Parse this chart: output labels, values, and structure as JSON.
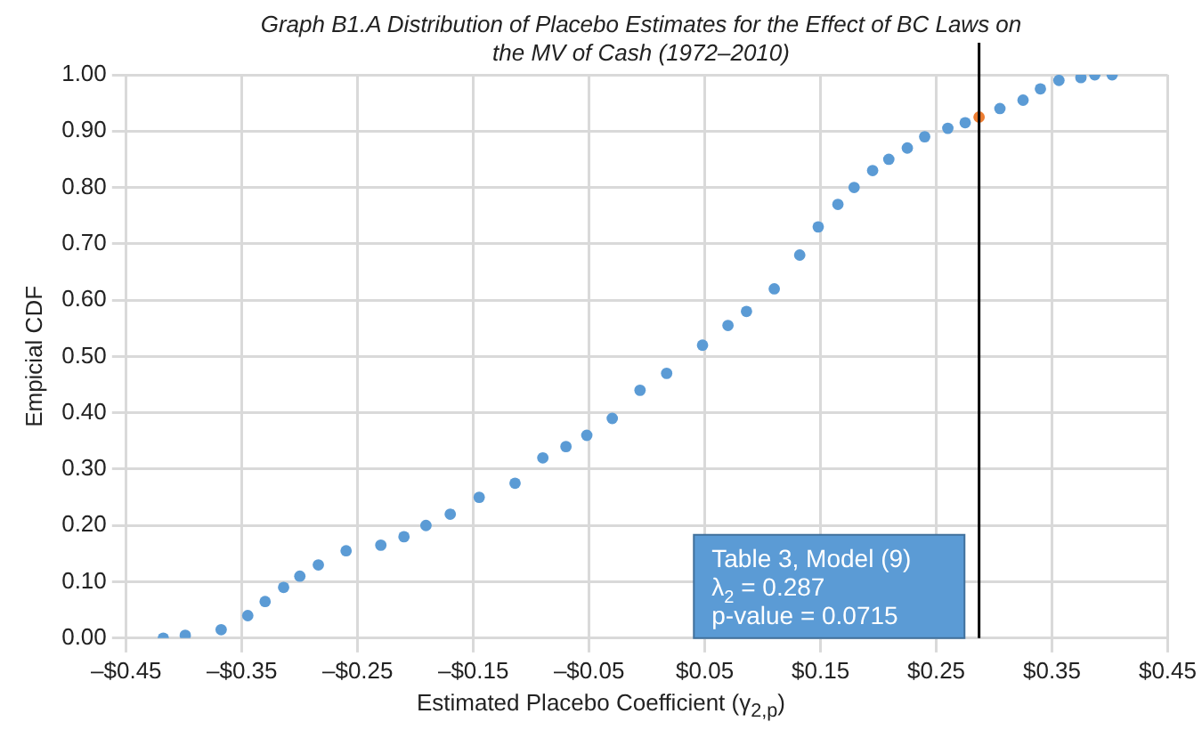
{
  "chart_data": {
    "type": "scatter",
    "title": "Graph B1.A Distribution of Placebo Estimates for the Effect of BC Laws on the MV of Cash (1972–2010)",
    "xlabel": "Estimated Placebo Coefficient (γ$_{2,p}$)",
    "ylabel": "Empicial CDF",
    "series": [
      {
        "color": "#5b9bd5",
        "x": [
          -0.418,
          -0.399,
          -0.368,
          -0.345,
          -0.33,
          -0.314,
          -0.3,
          -0.284,
          -0.26,
          -0.23,
          -0.21,
          -0.191,
          -0.17,
          -0.145,
          -0.114,
          -0.09,
          -0.07,
          -0.052,
          -0.03,
          -0.006,
          0.017,
          0.048,
          0.07,
          0.086,
          0.11,
          0.132,
          0.148,
          0.165,
          0.179,
          0.195,
          0.209,
          0.225,
          0.24,
          0.26,
          0.275,
          0.305,
          0.325,
          0.34,
          0.356,
          0.375,
          0.387,
          0.402
        ],
        "values": [
          0,
          0.005,
          0.015,
          0.04,
          0.065,
          0.09,
          0.11,
          0.13,
          0.155,
          0.165,
          0.18,
          0.2,
          0.22,
          0.25,
          0.275,
          0.32,
          0.34,
          0.36,
          0.39,
          0.44,
          0.47,
          0.52,
          0.555,
          0.58,
          0.62,
          0.68,
          0.73,
          0.77,
          0.8,
          0.83,
          0.85,
          0.87,
          0.89,
          0.905,
          0.915,
          0.94,
          0.955,
          0.975,
          0.99,
          0.995,
          1,
          1
        ]
      },
      {
        "color": "#ed7d31",
        "x": [
          0.287
        ],
        "values": [
          0.925
        ]
      }
    ],
    "xlim": [
      -0.45,
      0.45
    ],
    "xticks": [
      {
        "value": -0.45,
        "label": "–$0.45"
      },
      {
        "value": -0.35,
        "label": "–$0.35"
      },
      {
        "value": -0.25,
        "label": "–$0.25"
      },
      {
        "value": -0.15,
        "label": "–$0.15"
      },
      {
        "value": -0.05,
        "label": "–$0.05"
      },
      {
        "value": 0.05,
        "label": "$0.05"
      },
      {
        "value": 0.15,
        "label": "$0.15"
      },
      {
        "value": 0.25,
        "label": "$0.25"
      },
      {
        "value": 0.35,
        "label": "$0.35"
      },
      {
        "value": 0.45,
        "label": "$0.45"
      }
    ],
    "ylim": [
      0,
      1
    ],
    "yticks": [
      {
        "value": 0,
        "label": "0.00"
      },
      {
        "value": 0.1,
        "label": "0.10"
      },
      {
        "value": 0.2,
        "label": "0.20"
      },
      {
        "value": 0.3,
        "label": "0.30"
      },
      {
        "value": 0.4,
        "label": "0.40"
      },
      {
        "value": 0.5,
        "label": "0.50"
      },
      {
        "value": 0.6,
        "label": "0.60"
      },
      {
        "value": 0.7,
        "label": "0.70"
      },
      {
        "value": 0.8,
        "label": "0.80"
      },
      {
        "value": 0.9,
        "label": "0.90"
      },
      {
        "value": 1,
        "label": "1.00"
      }
    ],
    "ref_lines": [
      {
        "axis": "x",
        "value": 0.287,
        "color": "#000000"
      }
    ],
    "annotations": [
      "Table 3, Model (9)",
      "λ$_{2}$ = 0.287",
      "p-value = 0.0715"
    ],
    "grid": true,
    "legend": false,
    "marker": "circle"
  }
}
